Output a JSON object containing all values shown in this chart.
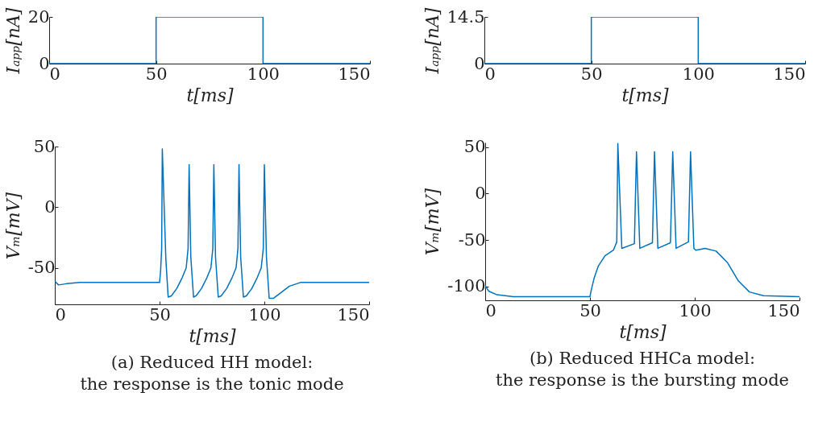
{
  "chart_data": [
    {
      "type": "line",
      "xlabel": "t[ms]",
      "ylabel": "Iₐₚₚ[nA]",
      "x": [
        0,
        50,
        50,
        100,
        100,
        150
      ],
      "xlim": [
        0,
        150
      ],
      "xticks": [
        0,
        50,
        100,
        150
      ],
      "ylim": [
        0,
        20
      ],
      "yticks": [
        0,
        20
      ],
      "series": [
        {
          "color": "#0072bd",
          "values": [
            0,
            0,
            20,
            20,
            0,
            0
          ]
        }
      ]
    },
    {
      "type": "line",
      "xlabel": "t[ms]",
      "ylabel": "Iₐₚₚ[nA]",
      "x": [
        0,
        50,
        50,
        100,
        100,
        150
      ],
      "xlim": [
        0,
        150
      ],
      "xticks": [
        0,
        50,
        100,
        150
      ],
      "ylim": [
        0,
        14.5
      ],
      "yticks": [
        0,
        14.5
      ],
      "series": [
        {
          "color": "#0072bd",
          "values": [
            0,
            0,
            14.5,
            14.5,
            0,
            0
          ]
        }
      ]
    },
    {
      "type": "line",
      "xlabel": "t[ms]",
      "ylabel": "Vₘ[mV]",
      "xlim": [
        0,
        150
      ],
      "xticks": [
        0,
        50,
        100,
        150
      ],
      "ylim": [
        -80,
        50
      ],
      "yticks": [
        -50,
        0,
        50
      ],
      "annotations": [
        "(a) Reduced HH model:",
        "the response is the tonic mode"
      ],
      "x": [
        0,
        1.8,
        5.6,
        12,
        50,
        50.5,
        51,
        51.3,
        53,
        54.1,
        55.6,
        58.2,
        60.8,
        62.7,
        63.6,
        64.1,
        64.9,
        66.2,
        67.4,
        70,
        72.6,
        74.5,
        75.4,
        75.9,
        76.7,
        78,
        79.4,
        82,
        84.6,
        86.5,
        87.4,
        87.9,
        88.7,
        90,
        91.4,
        94,
        96.6,
        98.5,
        99.5,
        100,
        101,
        102.3,
        104.4,
        108.2,
        112,
        117.2,
        123.6,
        150
      ],
      "series": [
        {
          "color": "#0072bd",
          "values": [
            -61,
            -64,
            -63,
            -62,
            -62,
            -52,
            -34,
            48,
            -43,
            -74,
            -73,
            -67,
            -58,
            -50,
            -34,
            35,
            -41,
            -74,
            -73,
            -67,
            -58,
            -50,
            -34,
            35,
            -41,
            -74,
            -73,
            -67,
            -58,
            -50,
            -34,
            35,
            -41,
            -74,
            -73,
            -67,
            -58,
            -50,
            -34,
            35,
            -41,
            -75,
            -75,
            -70,
            -65,
            -62,
            -62,
            -62
          ]
        }
      ]
    },
    {
      "type": "line",
      "xlabel": "t[ms]",
      "ylabel": "Vₘ[mV]",
      "xlim": [
        0,
        150
      ],
      "xticks": [
        0,
        50,
        100,
        150
      ],
      "ylim": [
        -115,
        55
      ],
      "yticks": [
        -100,
        -50,
        0,
        50
      ],
      "annotations": [
        "(b) Reduced HHCa model:",
        "the response is the bursting mode"
      ],
      "x": [
        0,
        1.6,
        5.6,
        13.5,
        50,
        50.6,
        52,
        54,
        57.2,
        61.2,
        62.8,
        63.3,
        65.2,
        71.2,
        72.2,
        73.8,
        79.8,
        80.8,
        82.4,
        88.4,
        89.5,
        91.1,
        97,
        98,
        99.6,
        100.5,
        105,
        110.2,
        115.5,
        120.8,
        126.1,
        132.8,
        150
      ],
      "series": [
        {
          "color": "#0072bd",
          "values": [
            -99,
            -105,
            -109,
            -111,
            -111,
            -104,
            -91,
            -78,
            -67,
            -61,
            -52,
            54,
            -59,
            -54,
            45,
            -59,
            -53,
            45,
            -59,
            -53,
            45,
            -59,
            -52,
            45,
            -59,
            -61,
            -59,
            -62,
            -74,
            -94,
            -106,
            -110,
            -111
          ]
        }
      ]
    }
  ]
}
